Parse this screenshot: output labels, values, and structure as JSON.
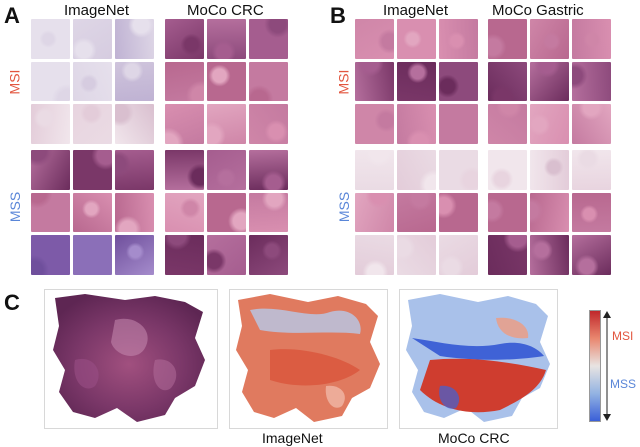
{
  "panels": {
    "a": {
      "letter": "A",
      "col_titles": [
        "ImageNet",
        "MoCo CRC"
      ],
      "row_labels": [
        "MSI",
        "MSS"
      ]
    },
    "b": {
      "letter": "B",
      "col_titles": [
        "ImageNet",
        "MoCo Gastric"
      ],
      "row_labels": [
        "MSI",
        "MSS"
      ]
    },
    "c": {
      "letter": "C",
      "captions": [
        "ImageNet",
        "MoCo CRC"
      ],
      "colorbar": {
        "top_label": "MSI",
        "bottom_label": "MSS"
      }
    }
  },
  "colors": {
    "msi_label": "#e2563f",
    "mss_label": "#5a86d8",
    "he_purple": "#7a3768",
    "he_pink": "#d98fb0",
    "heat_red": "#d9553b",
    "heat_blue": "#4a6fd8"
  }
}
